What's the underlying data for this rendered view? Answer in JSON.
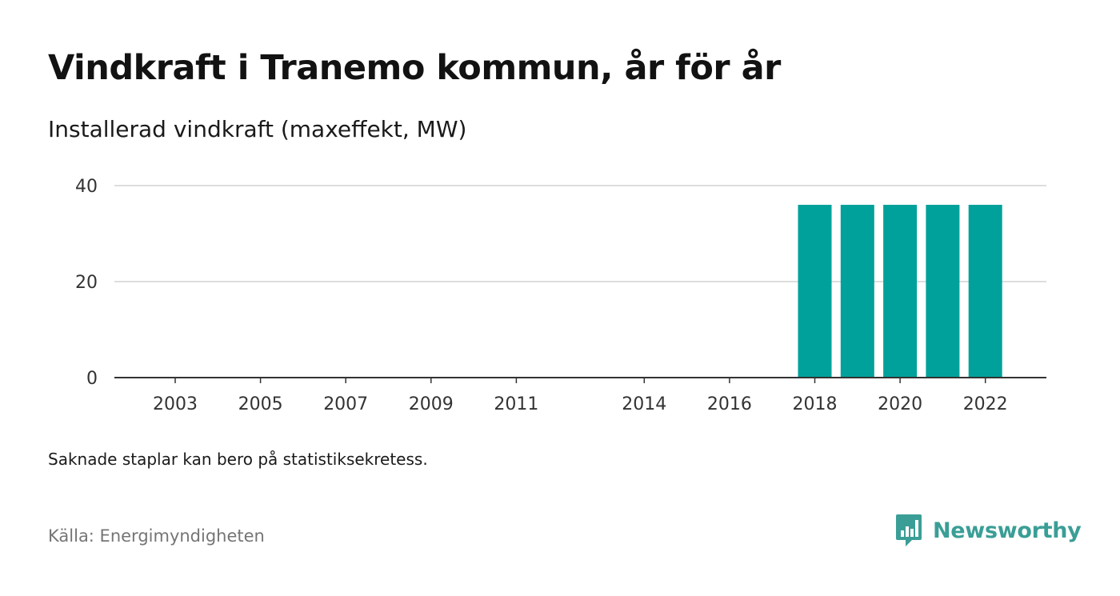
{
  "title": "Vindkraft i Tranemo kommun, år för år",
  "subtitle": "Installerad vindkraft (maxeffekt, MW)",
  "note": "Saknade staplar kan bero på statistiksekretess.",
  "source": "Källa: Energimyndigheten",
  "brand": {
    "name": "Newsworthy",
    "icon": "newsworthy-logo-icon",
    "color": "#3a9e96"
  },
  "colors": {
    "bar": "#00a19a",
    "grid": "#dddddd",
    "axis": "#333333"
  },
  "chart_data": {
    "type": "bar",
    "categories": [
      2003,
      2004,
      2005,
      2006,
      2007,
      2008,
      2009,
      2010,
      2011,
      2013,
      2014,
      2015,
      2016,
      2017,
      2018,
      2019,
      2020,
      2021,
      2022
    ],
    "values": [
      0,
      0,
      0,
      0,
      0,
      0,
      0,
      0,
      0,
      0,
      0,
      0,
      0,
      0,
      36,
      36,
      36,
      36,
      36
    ],
    "x_tick_labels": [
      "2003",
      "2005",
      "2007",
      "2009",
      "2011",
      "2014",
      "2016",
      "2018",
      "2020",
      "2022"
    ],
    "y_ticks": [
      0,
      20,
      40
    ],
    "ylim": [
      0,
      40
    ],
    "grid": true,
    "legend": "none",
    "title": "Vindkraft i Tranemo kommun, år för år",
    "xlabel": "",
    "ylabel": ""
  }
}
